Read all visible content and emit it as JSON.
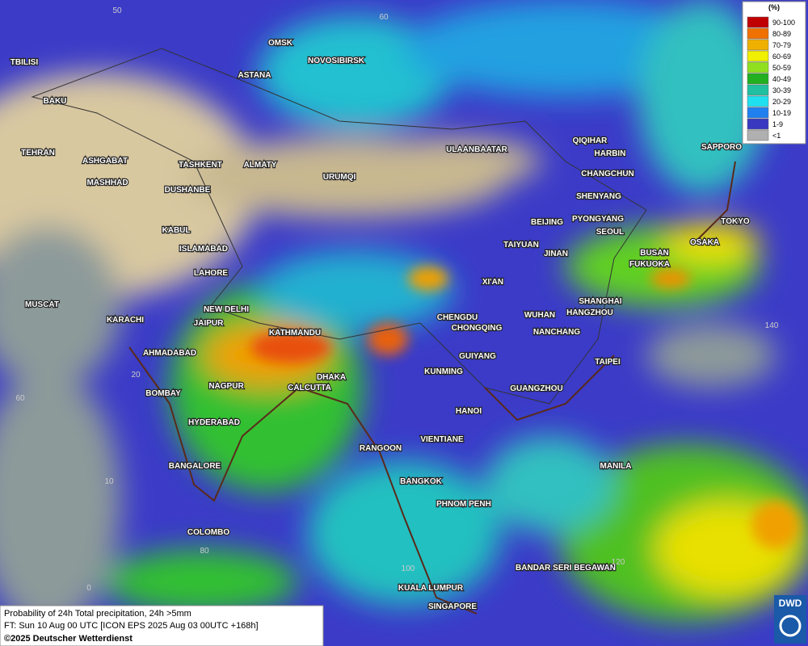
{
  "cities": [
    "TBILISI",
    "BAKU",
    "TEHRAN",
    "ASHGABAT",
    "MASHHAD",
    "OMSK",
    "NOVOSIBIRSK",
    "ASTANA",
    "TASHKENT",
    "ALMATY",
    "DUSHANBE",
    "URUMQI",
    "ULAANBAATAR",
    "QIQIHAR",
    "HARBIN",
    "CHANGCHUN",
    "SAPPORO",
    "SHENYANG",
    "BEIJING",
    "PYONGYANG",
    "SEOUL",
    "TOKYO",
    "OSAKA",
    "BUSAN",
    "FUKUOKA",
    "TAIYUAN",
    "JINAN",
    "KABUL",
    "ISLAMABAD",
    "LAHORE",
    "XI'AN",
    "SHANGHAI",
    "WUHAN",
    "HANGZHOU",
    "MUSCAT",
    "NEW DELHI",
    "CHENGDU",
    "KARACHI",
    "JAIPUR",
    "KATHMANDU",
    "CHONGQING",
    "NANCHANG",
    "AHMADABAD",
    "GUIYANG",
    "TAIPEI",
    "KUNMING",
    "DHAKA",
    "NAGPUR",
    "CALCUTTA",
    "GUANGZHOU",
    "BOMBAY",
    "HANOI",
    "HYDERABAD",
    "VIENTIANE",
    "RANGOON",
    "MANILA",
    "BANGALORE",
    "BANGKOK",
    "PHNOM PENH",
    "COLOMBO",
    "BANDAR SERI BEGAWAN",
    "KUALA LUMPUR",
    "SINGAPORE"
  ],
  "grid_labels": [
    "50",
    "60",
    "140",
    "20",
    "60",
    "10",
    "80",
    "0",
    "100",
    "120"
  ],
  "legend": {
    "title": "(%)",
    "items": [
      {
        "label": "90-100",
        "color": "#c00000"
      },
      {
        "label": "80-89",
        "color": "#f07000"
      },
      {
        "label": "70-79",
        "color": "#f0b000"
      },
      {
        "label": "60-69",
        "color": "#f0f000"
      },
      {
        "label": "50-59",
        "color": "#90e020"
      },
      {
        "label": "40-49",
        "color": "#20b020"
      },
      {
        "label": "30-39",
        "color": "#20c0a0"
      },
      {
        "label": "20-29",
        "color": "#20e0f0"
      },
      {
        "label": "10-19",
        "color": "#2080f0"
      },
      {
        "label": "1-9",
        "color": "#3838c0"
      },
      {
        "label": "<1",
        "color": "#b0b0b0"
      }
    ]
  },
  "footer": [
    "Probability of 24h Total precipitation, 24h >5mm",
    "FT: Sun 10 Aug 00 UTC [ICON EPS 2025 Aug 03 00UTC +168h]",
    "©2025 Deutscher Wetterdienst"
  ],
  "logo": "DWD"
}
